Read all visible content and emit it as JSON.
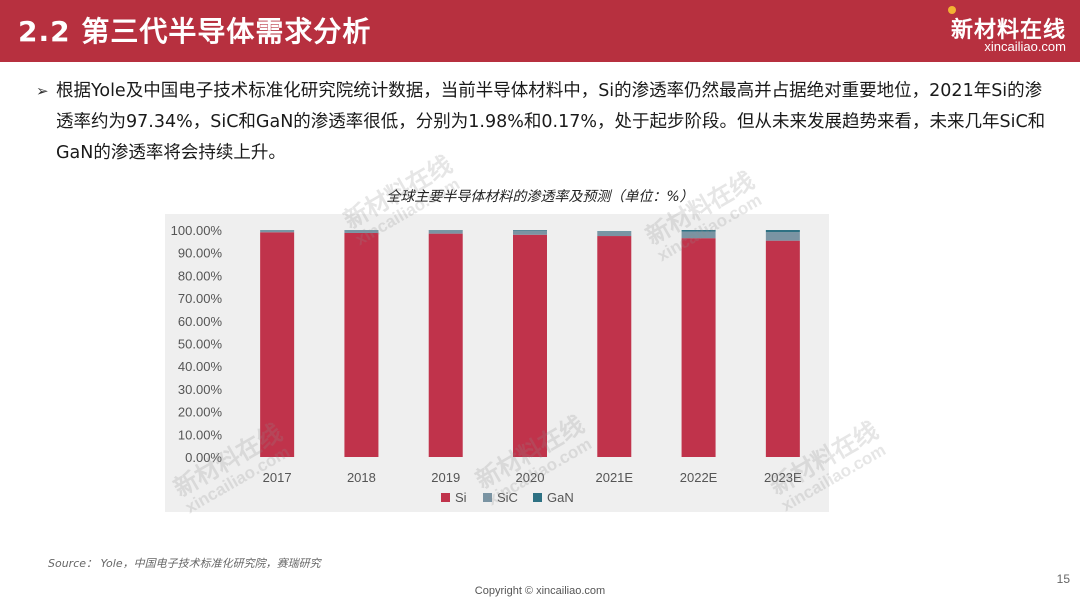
{
  "header": {
    "title": "2.2 第三代半导体需求分析",
    "logo_cn": "新材料在线",
    "logo_en": "xincailiao.com"
  },
  "bullet": {
    "arrow": "➢",
    "text": "根据Yole及中国电子技术标准化研究院统计数据，当前半导体材料中，Si的渗透率仍然最高并占据绝对重要地位，2021年Si的渗透率约为97.34%，SiC和GaN的渗透率很低，分别为1.98%和0.17%，处于起步阶段。但从未来发展趋势来看，未来几年SiC和GaN的渗透率将会持续上升。"
  },
  "chart_data": {
    "type": "bar",
    "stacked": true,
    "title": "全球主要半导体材料的渗透率及预测（单位：%）",
    "categories": [
      "2017",
      "2018",
      "2019",
      "2020",
      "2021E",
      "2022E",
      "2023E"
    ],
    "series": [
      {
        "name": "Si",
        "color": "#c0334b",
        "values": [
          99.0,
          98.7,
          98.4,
          97.9,
          97.34,
          96.4,
          95.3
        ]
      },
      {
        "name": "SiC",
        "color": "#7a94a3",
        "values": [
          0.9,
          1.2,
          1.5,
          1.9,
          1.98,
          2.9,
          3.8
        ]
      },
      {
        "name": "GaN",
        "color": "#2e7183",
        "values": [
          0.1,
          0.1,
          0.1,
          0.2,
          0.17,
          0.7,
          0.9
        ]
      }
    ],
    "yticks": [
      "0.00%",
      "10.00%",
      "20.00%",
      "30.00%",
      "40.00%",
      "50.00%",
      "60.00%",
      "70.00%",
      "80.00%",
      "90.00%",
      "100.00%"
    ],
    "ylim": [
      0,
      100
    ],
    "legend_position": "bottom",
    "grid": false
  },
  "watermark": {
    "cn": "新材料在线",
    "en": "xincailiao.com"
  },
  "footer": {
    "source": "Source：  Yole，中国电子技术标准化研究院，赛瑞研究",
    "copyright": "Copyright © xincailiao.com",
    "page": "15"
  }
}
